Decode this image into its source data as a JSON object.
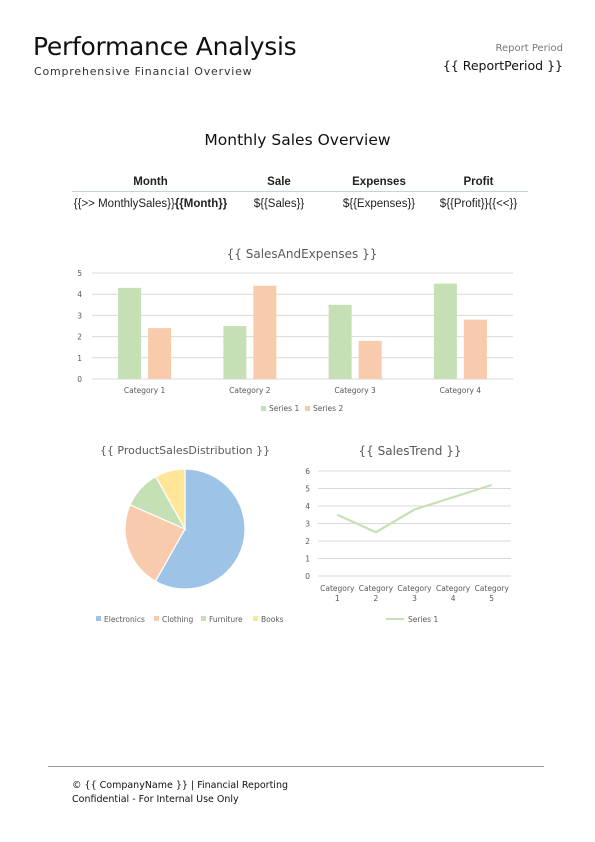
{
  "header": {
    "title": "Performance Analysis",
    "subtitle": "Comprehensive Financial Overview",
    "period_label": "Report Period",
    "period_value": "{{ ReportPeriod }}"
  },
  "section": {
    "title": "Monthly Sales Overview"
  },
  "table": {
    "headers": [
      "Month",
      "Sale",
      "Expenses",
      "Profit"
    ],
    "row": {
      "month_prefix": "{{>> MonthlySales}}",
      "month_bold": "{{Month}}",
      "sale": "${{Sales}}",
      "expenses": "${{Expenses}}",
      "profit": "${{Profit}}{{<<}}"
    }
  },
  "colors": {
    "green": "#c5e0b4",
    "orange": "#f8cbad",
    "blue": "#9dc3e6",
    "yellow": "#ffe699",
    "grid": "#d9d9d9",
    "axis_text": "#595959"
  },
  "chart_data": [
    {
      "type": "bar",
      "title": "{{ SalesAndExpenses }}",
      "categories": [
        "Category 1",
        "Category 2",
        "Category 3",
        "Category 4"
      ],
      "series": [
        {
          "name": "Series 1",
          "values": [
            4.3,
            2.5,
            3.5,
            4.5
          ],
          "color": "#c5e0b4"
        },
        {
          "name": "Series 2",
          "values": [
            2.4,
            4.4,
            1.8,
            2.8
          ],
          "color": "#f8cbad"
        }
      ],
      "ylim": [
        0,
        5
      ],
      "yticks": [
        "0",
        "1",
        "2",
        "3",
        "4",
        "5"
      ],
      "grid": true,
      "legend": "bottom"
    },
    {
      "type": "pie",
      "title": "{{ ProductSalesDistribution }}",
      "labels": [
        "Electronics",
        "Clothing",
        "Furniture",
        "Books"
      ],
      "values": [
        58.2,
        23.4,
        10.3,
        8.1
      ],
      "colors": [
        "#9dc3e6",
        "#f8cbad",
        "#c5e0b4",
        "#ffe699"
      ],
      "legend": "bottom"
    },
    {
      "type": "line",
      "title": "{{ SalesTrend }}",
      "categories": [
        [
          "Category",
          "1"
        ],
        [
          "Category",
          "2"
        ],
        [
          "Category",
          "3"
        ],
        [
          "Category",
          "4"
        ],
        [
          "Category",
          "5"
        ]
      ],
      "series": [
        {
          "name": "Series 1",
          "values": [
            3.5,
            2.5,
            3.8,
            4.5,
            5.2
          ],
          "color": "#c5e0b4"
        }
      ],
      "ylim": [
        0,
        6
      ],
      "yticks": [
        "0",
        "1",
        "2",
        "3",
        "4",
        "5",
        "6"
      ],
      "grid": true,
      "legend": "bottom"
    }
  ],
  "footer": {
    "line1": "© {{ CompanyName }} | Financial Reporting",
    "line2": "Confidential - For Internal Use Only"
  }
}
